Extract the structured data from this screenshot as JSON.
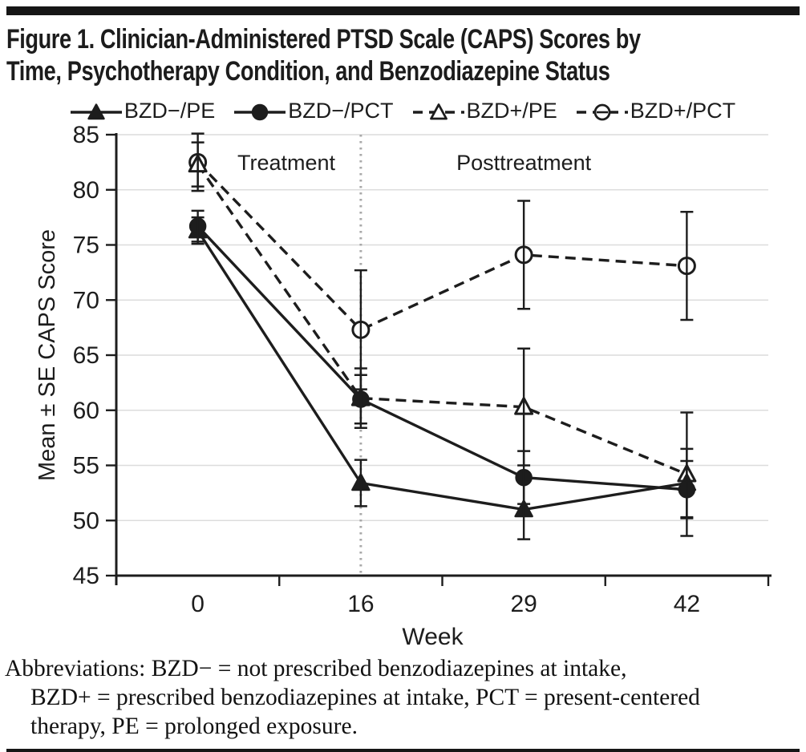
{
  "figure": {
    "title_lines": [
      "Figure 1. Clinician-Administered PTSD Scale (CAPS) Scores by",
      "Time, Psychotherapy Condition, and Benzodiazepine Status"
    ],
    "abbreviations_lines": [
      "Abbreviations: BZD− = not prescribed benzodiazepines at intake,",
      "BZD+ = prescribed benzodiazepines at intake, PCT = present-centered",
      "therapy, PE = prolonged exposure."
    ]
  },
  "colors": {
    "ink": "#1d1d1d",
    "grid": "#dcdcdc",
    "divider": "#a8a8a8",
    "rule": "#161616",
    "open_marker_fill": "#ffffff"
  },
  "chart_data": {
    "type": "line",
    "title": "Clinician-Administered PTSD Scale (CAPS) Scores by Time, Psychotherapy Condition, and Benzodiazepine Status",
    "x_weeks": [
      0,
      16,
      29,
      42
    ],
    "categories": [
      "0",
      "16",
      "29",
      "42"
    ],
    "xlabel": "Week",
    "ylabel": "Mean ± SE CAPS Score",
    "ylim": [
      45,
      85
    ],
    "ytick_step": 5,
    "grid": true,
    "legend_position": "top",
    "error_bars": "±SE",
    "divider_week_index": 1,
    "region_labels": [
      {
        "text": "Treatment"
      },
      {
        "text": "Posttreatment"
      }
    ],
    "series": [
      {
        "key": "bzd-minus-pe",
        "name": "BZD−/PE",
        "marker": "triangle",
        "fill": "filled",
        "line": "solid",
        "values": [
          76.3,
          53.4,
          51.0,
          53.4
        ],
        "se": [
          1.2,
          2.1,
          2.7,
          3.1
        ]
      },
      {
        "key": "bzd-minus-pct",
        "name": "BZD−/PCT",
        "marker": "circle",
        "fill": "filled",
        "line": "solid",
        "values": [
          76.7,
          61.0,
          53.9,
          52.8
        ],
        "se": [
          1.4,
          2.2,
          2.4,
          2.6
        ]
      },
      {
        "key": "bzd-plus-pe",
        "name": "BZD+/PE",
        "marker": "triangle",
        "fill": "open",
        "line": "dashed",
        "values": [
          82.3,
          61.1,
          60.3,
          54.2
        ],
        "se": [
          2.0,
          2.7,
          5.3,
          5.6
        ]
      },
      {
        "key": "bzd-plus-pct",
        "name": "BZD+/PCT",
        "marker": "circle",
        "fill": "open",
        "line": "dashed",
        "values": [
          82.5,
          67.3,
          74.1,
          73.1
        ],
        "se": [
          2.6,
          5.4,
          4.9,
          4.9
        ]
      }
    ],
    "marker_z_order": [
      "bzd-plus-pct",
      "bzd-plus-pe",
      "bzd-minus-pe",
      "bzd-minus-pct"
    ]
  }
}
